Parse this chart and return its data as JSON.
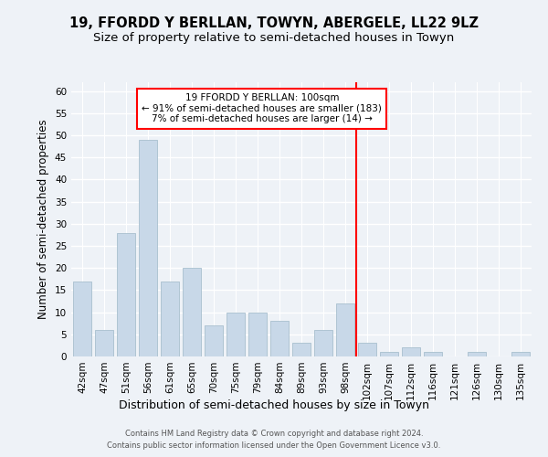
{
  "title": "19, FFORDD Y BERLLAN, TOWYN, ABERGELE, LL22 9LZ",
  "subtitle": "Size of property relative to semi-detached houses in Towyn",
  "xlabel": "Distribution of semi-detached houses by size in Towyn",
  "ylabel": "Number of semi-detached properties",
  "categories": [
    "42sqm",
    "47sqm",
    "51sqm",
    "56sqm",
    "61sqm",
    "65sqm",
    "70sqm",
    "75sqm",
    "79sqm",
    "84sqm",
    "89sqm",
    "93sqm",
    "98sqm",
    "102sqm",
    "107sqm",
    "112sqm",
    "116sqm",
    "121sqm",
    "126sqm",
    "130sqm",
    "135sqm"
  ],
  "values": [
    17,
    6,
    28,
    49,
    17,
    20,
    7,
    10,
    10,
    8,
    3,
    6,
    12,
    3,
    1,
    2,
    1,
    0,
    1,
    0,
    1
  ],
  "bar_color": "#c8d8e8",
  "bar_edge_color": "#a8bfce",
  "vline_x": 12.5,
  "vline_color": "red",
  "ylim": [
    0,
    62
  ],
  "yticks": [
    0,
    5,
    10,
    15,
    20,
    25,
    30,
    35,
    40,
    45,
    50,
    55,
    60
  ],
  "legend_title": "19 FFORDD Y BERLLAN: 100sqm",
  "legend_line1": "← 91% of semi-detached houses are smaller (183)",
  "legend_line2": "7% of semi-detached houses are larger (14) →",
  "legend_box_color": "red",
  "footer_line1": "Contains HM Land Registry data © Crown copyright and database right 2024.",
  "footer_line2": "Contains public sector information licensed under the Open Government Licence v3.0.",
  "background_color": "#eef2f7",
  "grid_color": "white",
  "title_fontsize": 10.5,
  "subtitle_fontsize": 9.5,
  "ylabel_fontsize": 8.5,
  "xlabel_fontsize": 9,
  "tick_fontsize": 7.5,
  "legend_fontsize": 7.5,
  "footer_fontsize": 6
}
